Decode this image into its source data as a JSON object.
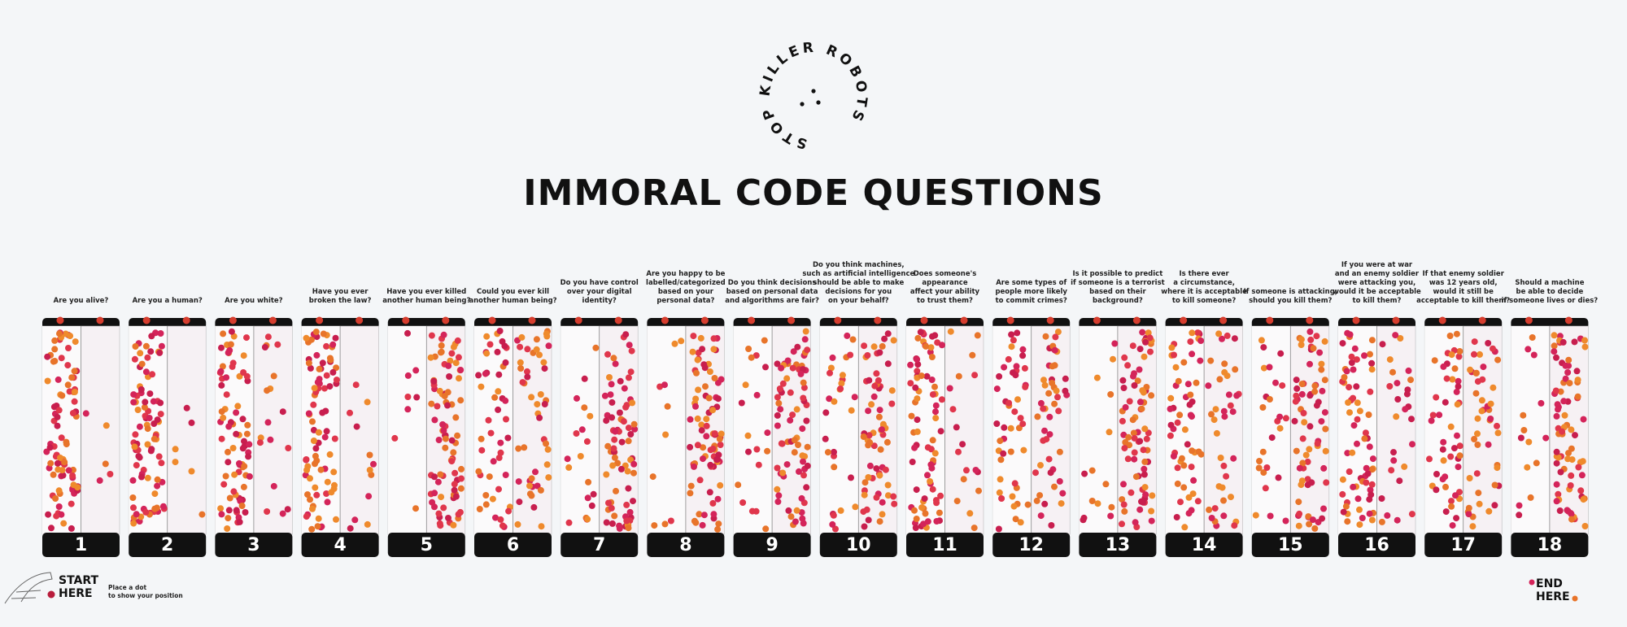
{
  "logo": {
    "text": "STOP KILLER ROBOTS"
  },
  "title": "IMMORAL CODE QUESTIONS",
  "questions": [
    {
      "number": "1",
      "lines": [
        "Are you alive?"
      ]
    },
    {
      "number": "2",
      "lines": [
        "Are you a human?"
      ]
    },
    {
      "number": "3",
      "lines": [
        "Are you white?"
      ]
    },
    {
      "number": "4",
      "lines": [
        "Have you ever",
        "broken the law?"
      ]
    },
    {
      "number": "5",
      "lines": [
        "Have you ever killed",
        "another human being?"
      ]
    },
    {
      "number": "6",
      "lines": [
        "Could you ever kill",
        "another human being?"
      ]
    },
    {
      "number": "7",
      "lines": [
        "Do you have control",
        "over your digital",
        "identity?"
      ]
    },
    {
      "number": "8",
      "lines": [
        "Are you happy to be",
        "labelled/categorized",
        "based on your",
        "personal data?"
      ]
    },
    {
      "number": "9",
      "lines": [
        "Do you think decisions",
        "based on personal data",
        "and algorithms are fair?"
      ]
    },
    {
      "number": "10",
      "lines": [
        "Do you think machines,",
        "such as artificial intelligence",
        "should be able to make",
        "decisions for you",
        "on your behalf?"
      ]
    },
    {
      "number": "11",
      "lines": [
        "Does someone's",
        "appearance",
        "affect your ability",
        "to trust them?"
      ]
    },
    {
      "number": "12",
      "lines": [
        "Are some types of",
        "people more likely",
        "to commit crimes?"
      ]
    },
    {
      "number": "13",
      "lines": [
        "Is it possible to predict",
        "if someone is a terrorist",
        "based on their",
        "background?"
      ]
    },
    {
      "number": "14",
      "lines": [
        "Is there ever",
        "a circumstance,",
        "where it is acceptable",
        "to kill someone?"
      ]
    },
    {
      "number": "15",
      "lines": [
        "If someone is attacking,",
        "should you kill them?"
      ]
    },
    {
      "number": "16",
      "lines": [
        "If you were at war",
        "and an enemy soldier",
        "were attacking you,",
        "would it be acceptable",
        "to kill them?"
      ]
    },
    {
      "number": "17",
      "lines": [
        "If that enemy soldier",
        "was 12 years old,",
        "would it still be",
        "acceptable to kill them?"
      ]
    },
    {
      "number": "18",
      "lines": [
        "Should a machine",
        "be able to decide",
        "if someone lives or dies?"
      ]
    }
  ],
  "start": {
    "label": "START HERE",
    "hint": [
      "Place a dot",
      "to show your position"
    ]
  },
  "end": {
    "label": "END HERE"
  }
}
